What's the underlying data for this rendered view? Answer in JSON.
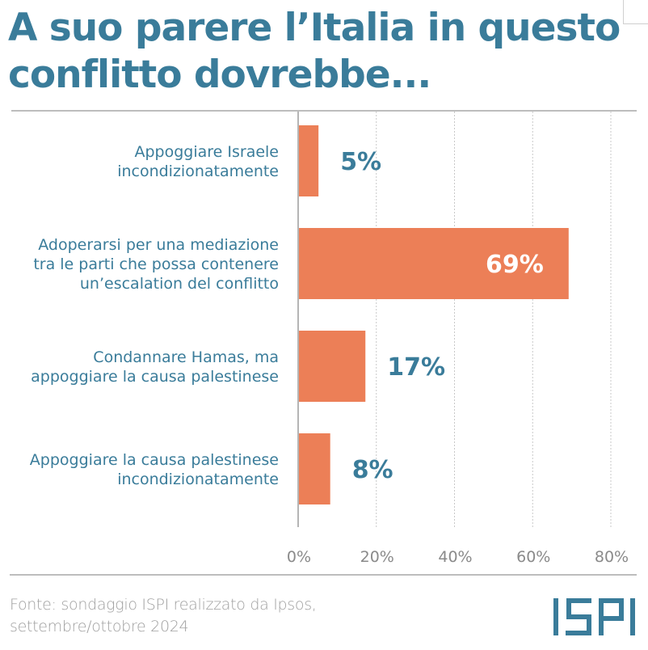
{
  "colors": {
    "title": "#3a7c9a",
    "bar": "#ec7f57",
    "label": "#3a7c9a",
    "value_inside": "#ffffff",
    "value_outside": "#3a7c9a",
    "tick": "#8a8a8a",
    "grid": "#c8c8c8",
    "source": "#a0a0a0",
    "logo": "#3a7c9a"
  },
  "chart_data": {
    "type": "bar",
    "orientation": "horizontal",
    "title": "A suo parere l’Italia in questo conflitto dovrebbe...",
    "title_lines": [
      "A suo parere l’Italia in questo",
      "conflitto dovrebbe..."
    ],
    "categories": [
      [
        "Appoggiare Israele",
        "incondizionatamente"
      ],
      [
        "Adoperarsi per una mediazione",
        "tra le parti che possa contenere",
        "un’escalation del conflitto"
      ],
      [
        "Condannare Hamas, ma",
        "appoggiare la causa palestinese"
      ],
      [
        "Appoggiare la causa palestinese",
        "incondizionatamente"
      ]
    ],
    "values": [
      5,
      69,
      17,
      8
    ],
    "value_labels": [
      "5%",
      "69%",
      "17%",
      "8%"
    ],
    "xlabel": "",
    "ylabel": "",
    "xlim": [
      0,
      80
    ],
    "xticks": [
      0,
      20,
      40,
      60,
      80
    ],
    "xtick_labels": [
      "0%",
      "20%",
      "40%",
      "60%",
      "80%"
    ],
    "grid": "vertical dotted",
    "legend": "none"
  },
  "footer": {
    "source_lines": [
      "Fonte: sondaggio ISPI realizzato da Ipsos,",
      "settembre/ottobre 2024"
    ],
    "logo_text": "ISPI"
  }
}
